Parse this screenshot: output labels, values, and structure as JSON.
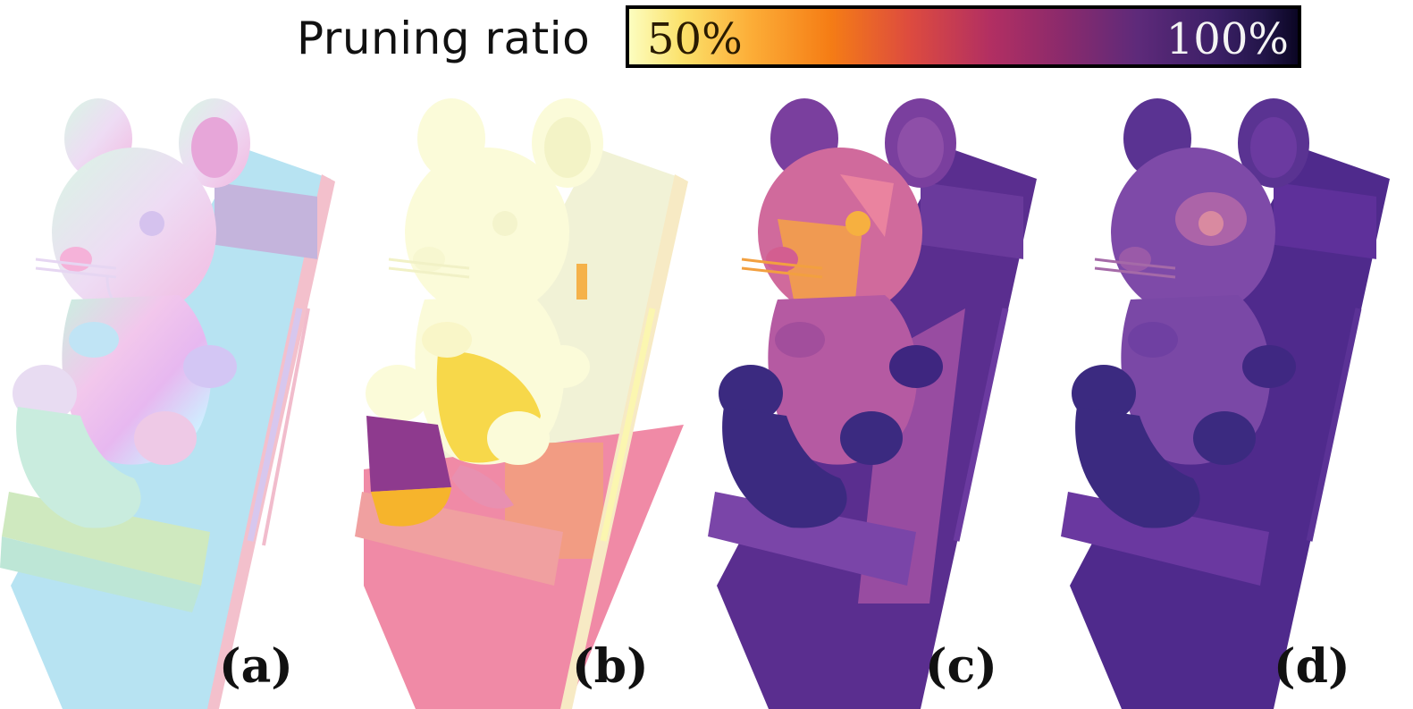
{
  "colorbar": {
    "title": "Pruning ratio",
    "min_label": "50%",
    "max_label": "100%"
  },
  "panels": [
    {
      "label": "(a)",
      "description": "normal-shaded mouse on deck chair",
      "style": "normals"
    },
    {
      "label": "(b)",
      "description": "pruning ratio map, mostly low ratio",
      "style": "low"
    },
    {
      "label": "(c)",
      "description": "pruning ratio map, mixed ratios",
      "style": "mid"
    },
    {
      "label": "(d)",
      "description": "pruning ratio map, mostly high ratio",
      "style": "high"
    }
  ],
  "colors": {
    "normals_chair": "#b7e3f2",
    "normals_body": "#f2c7e8",
    "low_body": "#fbfbd9",
    "low_chair": "#f08aa6",
    "mid_body": "#c45b9a",
    "mid_chair": "#5a2e8f",
    "high_body": "#6b3aa0",
    "high_chair": "#4f2a8c"
  }
}
